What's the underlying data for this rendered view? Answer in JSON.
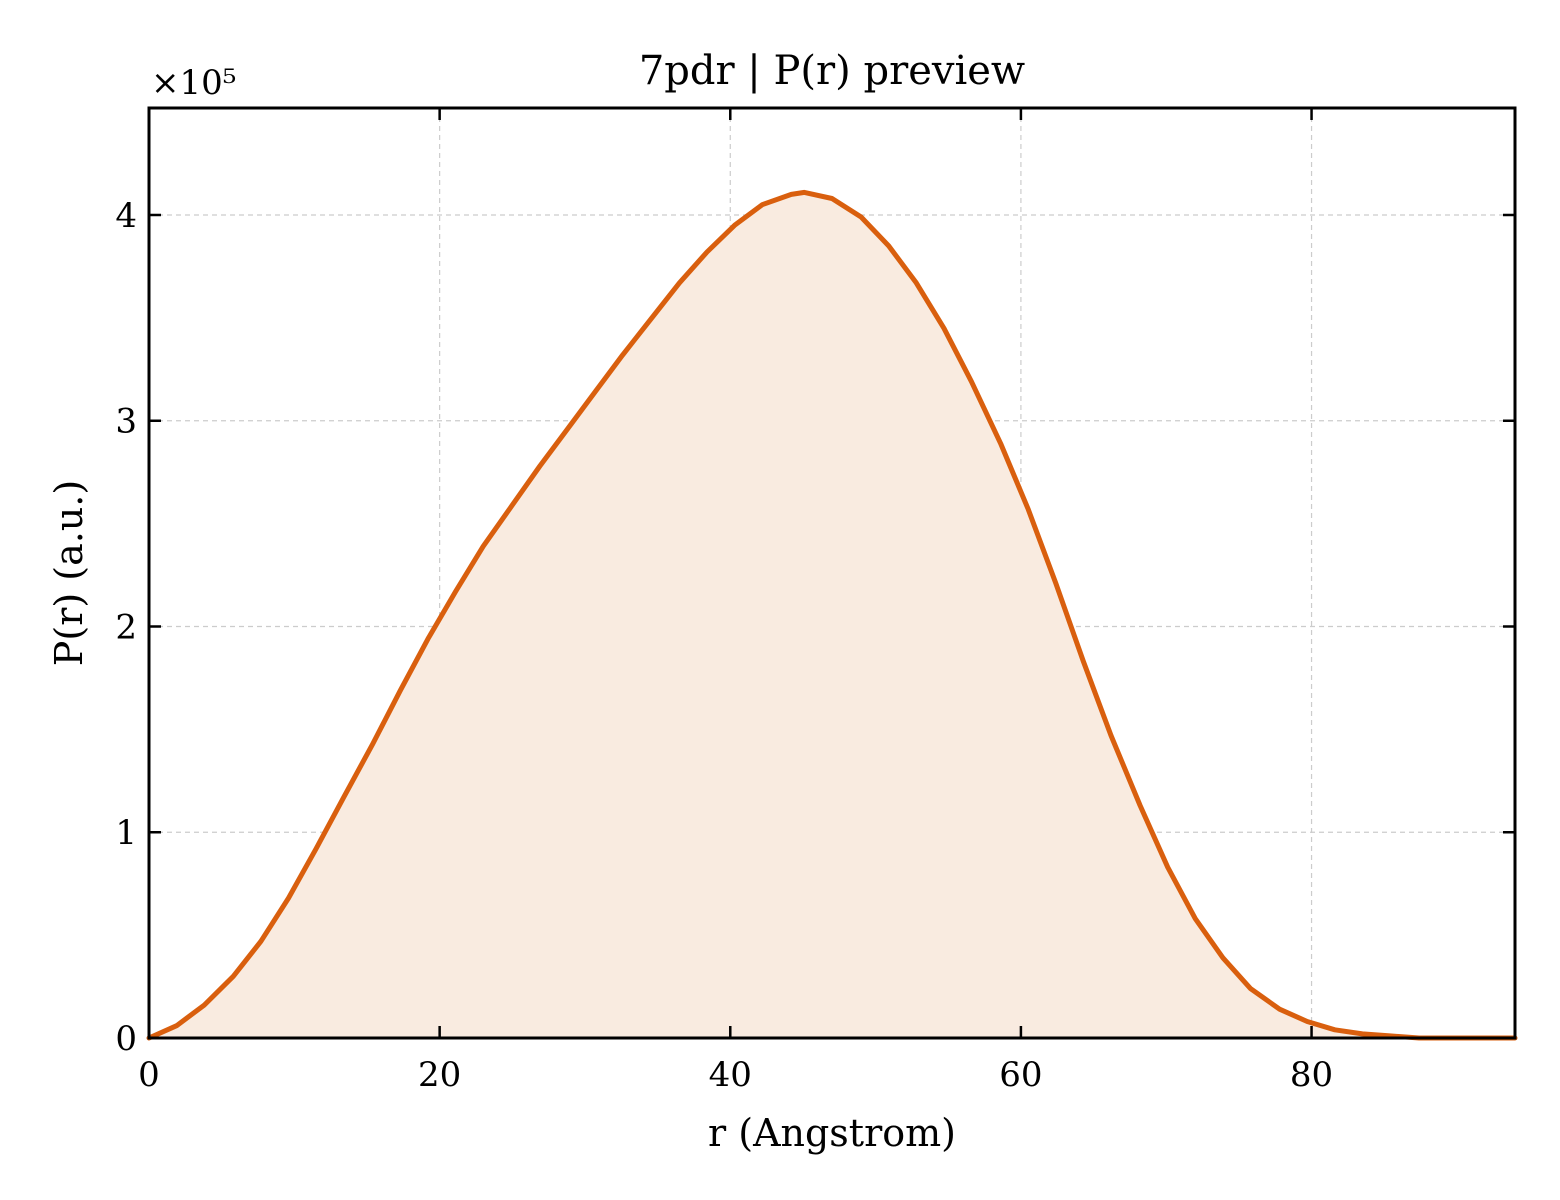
{
  "chart_data": {
    "type": "area",
    "title": "7pdr | P(r) preview",
    "xlabel": "r (Angstrom)",
    "ylabel": "P(r) (a.u.)",
    "y_multiplier_label": "×10⁵",
    "xlim": [
      0,
      94
    ],
    "ylim": [
      0,
      4.52
    ],
    "x_ticks": [
      0,
      20,
      40,
      60,
      80
    ],
    "y_ticks": [
      0,
      1,
      2,
      3,
      4
    ],
    "grid": true,
    "legend": "none",
    "series": [
      {
        "color": "#d95f0e",
        "fill_color": "#f9ebe0",
        "x": [
          0,
          1.9,
          3.8,
          5.8,
          7.7,
          9.6,
          11.5,
          13.4,
          15.4,
          17.3,
          19.2,
          21.1,
          23.0,
          25.0,
          26.9,
          28.8,
          30.7,
          32.6,
          34.6,
          36.5,
          38.4,
          40.3,
          42.2,
          44.2,
          45.1,
          47.0,
          49.0,
          50.9,
          52.8,
          54.7,
          56.6,
          58.6,
          60.5,
          62.4,
          64.3,
          66.2,
          68.2,
          70.1,
          72.0,
          73.9,
          75.8,
          77.8,
          79.7,
          81.6,
          83.5,
          85.4,
          87.4,
          89.3,
          91.2,
          94.0
        ],
        "y": [
          0.0,
          0.06,
          0.16,
          0.3,
          0.47,
          0.68,
          0.92,
          1.17,
          1.43,
          1.69,
          1.94,
          2.17,
          2.39,
          2.59,
          2.78,
          2.96,
          3.14,
          3.32,
          3.5,
          3.67,
          3.82,
          3.95,
          4.05,
          4.1,
          4.11,
          4.08,
          3.99,
          3.85,
          3.67,
          3.45,
          3.19,
          2.89,
          2.57,
          2.21,
          1.83,
          1.47,
          1.13,
          0.83,
          0.58,
          0.39,
          0.24,
          0.14,
          0.08,
          0.04,
          0.02,
          0.01,
          0.0,
          0.0,
          0.0,
          0.0
        ]
      }
    ]
  }
}
